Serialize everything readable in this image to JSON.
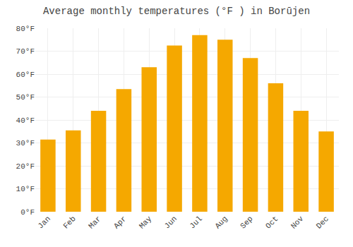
{
  "chart_data": {
    "type": "bar",
    "title": "Average monthly temperatures (°F ) in Borūjen",
    "categories": [
      "Jan",
      "Feb",
      "Mar",
      "Apr",
      "May",
      "Jun",
      "Jul",
      "Aug",
      "Sep",
      "Oct",
      "Nov",
      "Dec"
    ],
    "values": [
      31.5,
      35.5,
      44,
      53.5,
      63,
      72.5,
      77,
      75,
      67,
      56,
      44,
      35
    ],
    "color": "#F5A800",
    "ylim": [
      0,
      80
    ],
    "yticks": [
      {
        "value": 0,
        "label": "0°F"
      },
      {
        "value": 10,
        "label": "10°F"
      },
      {
        "value": 20,
        "label": "20°F"
      },
      {
        "value": 30,
        "label": "30°F"
      },
      {
        "value": 40,
        "label": "40°F"
      },
      {
        "value": 50,
        "label": "50°F"
      },
      {
        "value": 60,
        "label": "60°F"
      },
      {
        "value": 70,
        "label": "70°F"
      },
      {
        "value": 80,
        "label": "80°F"
      }
    ],
    "grid": true
  }
}
